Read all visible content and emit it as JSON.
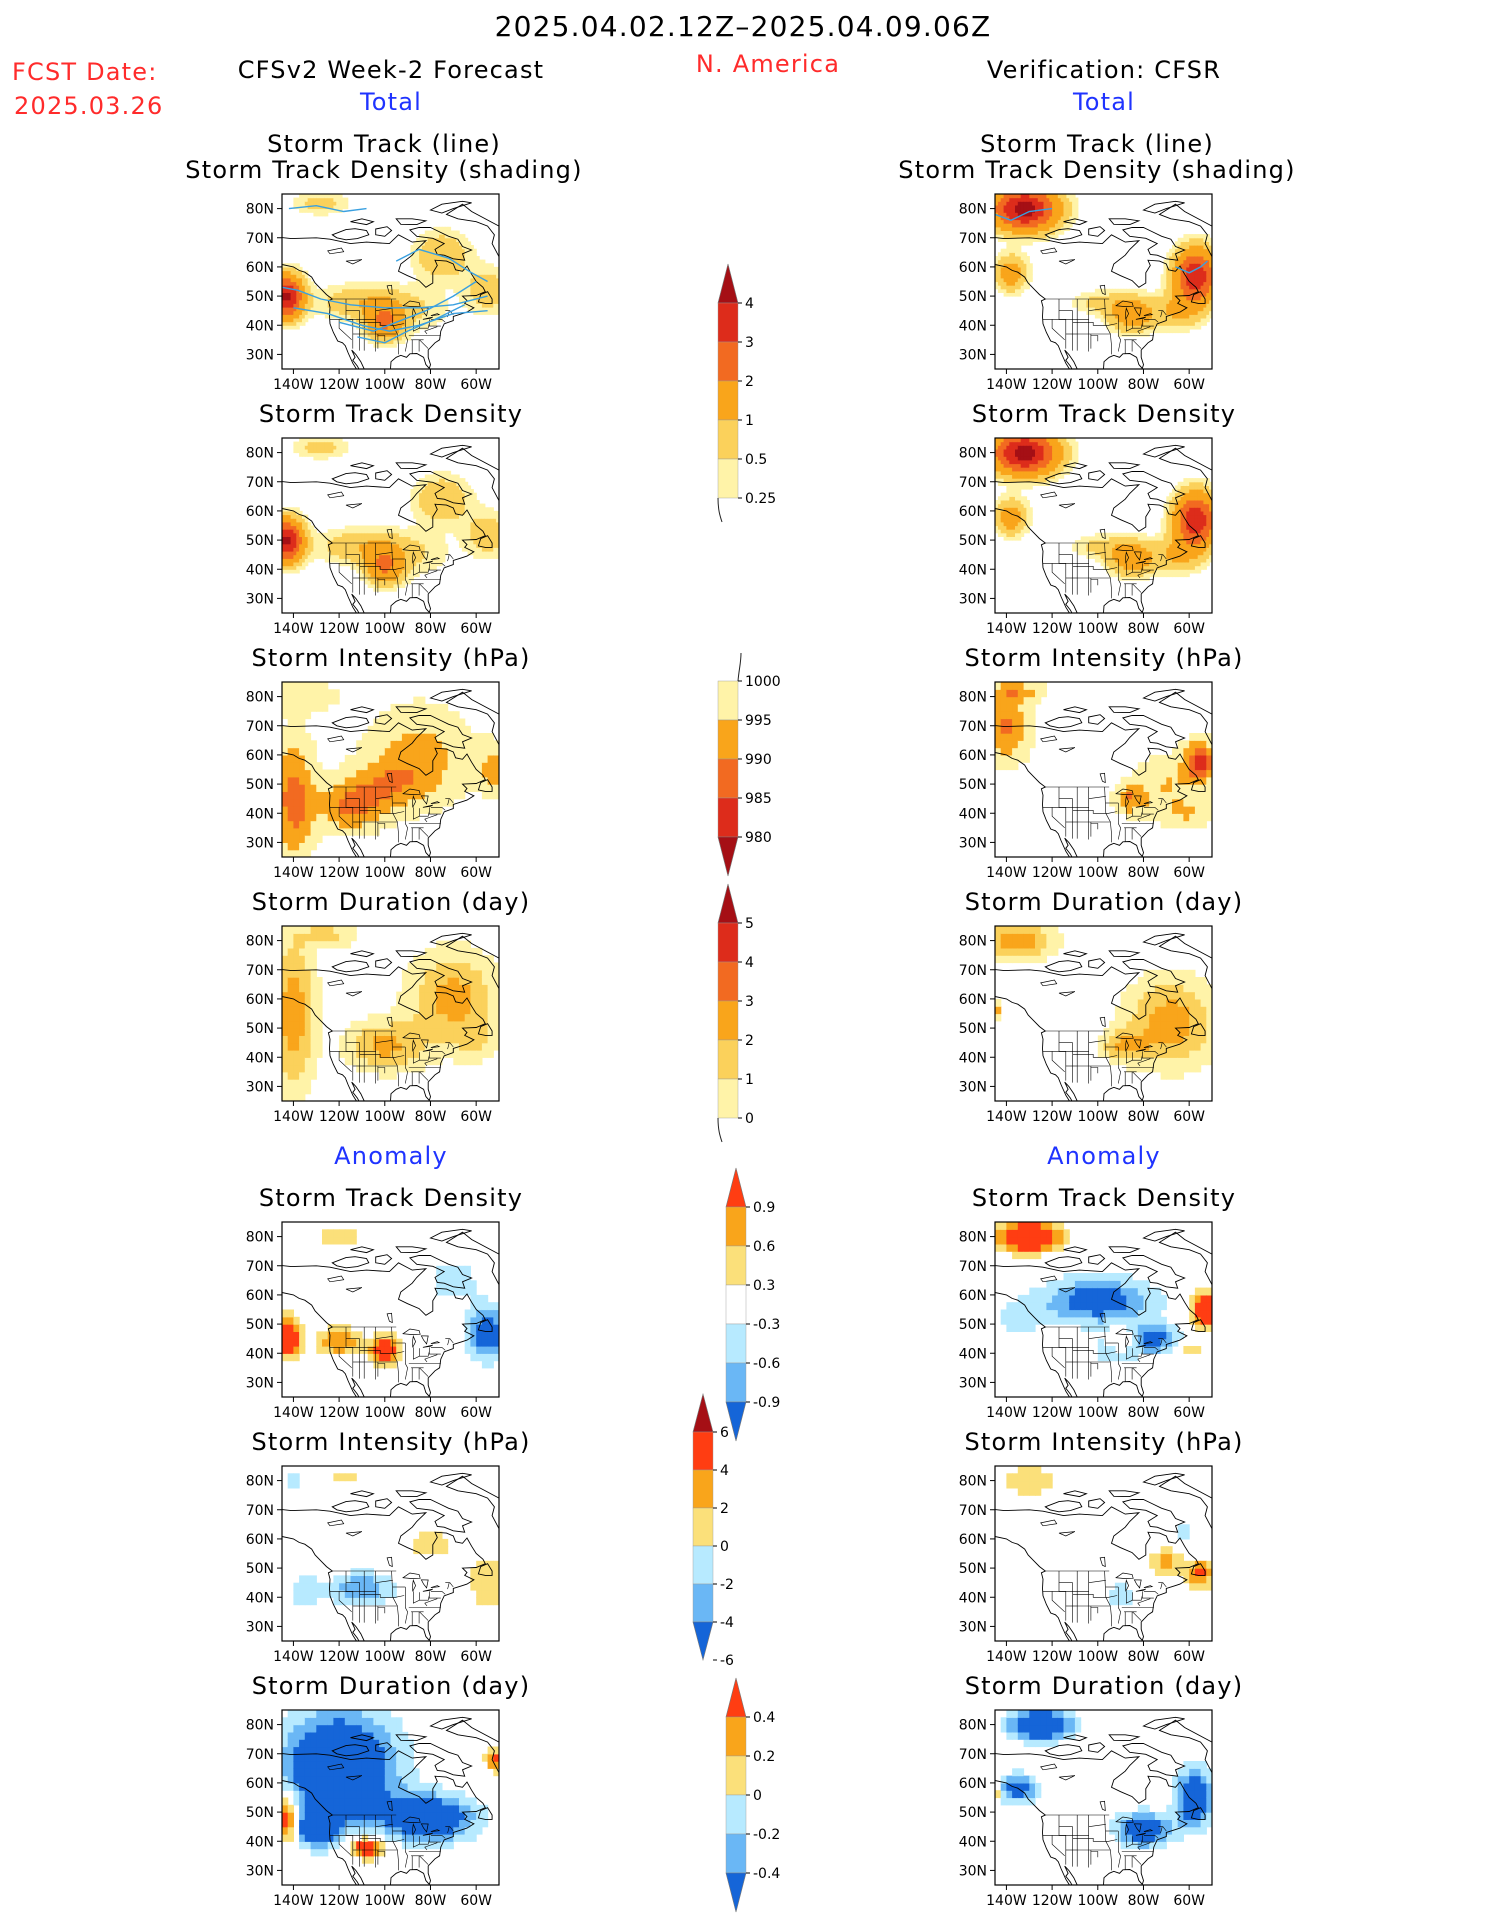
{
  "header": {
    "period": "2025.04.02.12Z–2025.04.09.06Z",
    "fcst_label": "FCST Date:",
    "fcst_date": "2025.03.26",
    "left_title": "CFSv2 Week-2 Forecast",
    "region": "N. America",
    "right_title": "Verification: CFSR",
    "left_section_total": "Total",
    "right_section_total": "Total",
    "left_section_anomaly": "Anomaly",
    "right_section_anomaly": "Anomaly"
  },
  "panel_titles": {
    "storm_track_line": "Storm Track (line)",
    "storm_track_density_shading": "Storm Track Density (shading)",
    "storm_track_density": "Storm Track Density",
    "storm_intensity": "Storm Intensity (hPa)",
    "storm_duration": "Storm Duration (day)"
  },
  "map_axes": {
    "lat_labels": [
      "80N",
      "70N",
      "60N",
      "50N",
      "40N",
      "30N"
    ],
    "lon_labels": [
      "140W",
      "120W",
      "100W",
      "80W",
      "60W"
    ]
  },
  "colorbars": {
    "density": {
      "labels": [
        "4",
        "3",
        "2",
        "1",
        "0.5",
        "0.25"
      ],
      "colors": [
        "#a50f15",
        "#dd2c1b",
        "#f26a21",
        "#f9a51b",
        "#fbd15b",
        "#fff3a8"
      ]
    },
    "intensity": {
      "labels": [
        "1000",
        "995",
        "990",
        "985",
        "980"
      ],
      "colors": [
        "#fff3a8",
        "#f9a51b",
        "#f26a21",
        "#dd2c1b",
        "#a50f15"
      ]
    },
    "duration": {
      "labels": [
        "5",
        "4",
        "3",
        "2",
        "1",
        "0"
      ],
      "colors": [
        "#a50f15",
        "#dd2c1b",
        "#f26a21",
        "#f9a51b",
        "#fbd15b",
        "#fff3a8"
      ]
    },
    "anom_density": {
      "labels": [
        "0.9",
        "0.6",
        "0.3",
        "-0.3",
        "-0.6",
        "-0.9"
      ],
      "colors": [
        "#ff3d12",
        "#f9a51b",
        "#fbe07a",
        "#ffffff",
        "#b7eaff",
        "#6ab7f5",
        "#1565d8"
      ]
    },
    "anom_intensity": {
      "labels": [
        "6",
        "4",
        "2",
        "0",
        "-2",
        "-4",
        "-6"
      ],
      "colors": [
        "#a50f15",
        "#ff3d12",
        "#f9a51b",
        "#fbe07a",
        "#b7eaff",
        "#6ab7f5",
        "#1565d8"
      ]
    },
    "anom_duration": {
      "labels": [
        "0.4",
        "0.2",
        "0",
        "-0.2",
        "-0.4"
      ],
      "colors": [
        "#ff3d12",
        "#f9a51b",
        "#fbe07a",
        "#b7eaff",
        "#6ab7f5",
        "#1565d8"
      ]
    }
  },
  "palette": {
    "land_outline": "#000000",
    "track_line": "#3aa0e0",
    "title_blue": "#1f33ff",
    "title_red": "#ff2b2b"
  }
}
